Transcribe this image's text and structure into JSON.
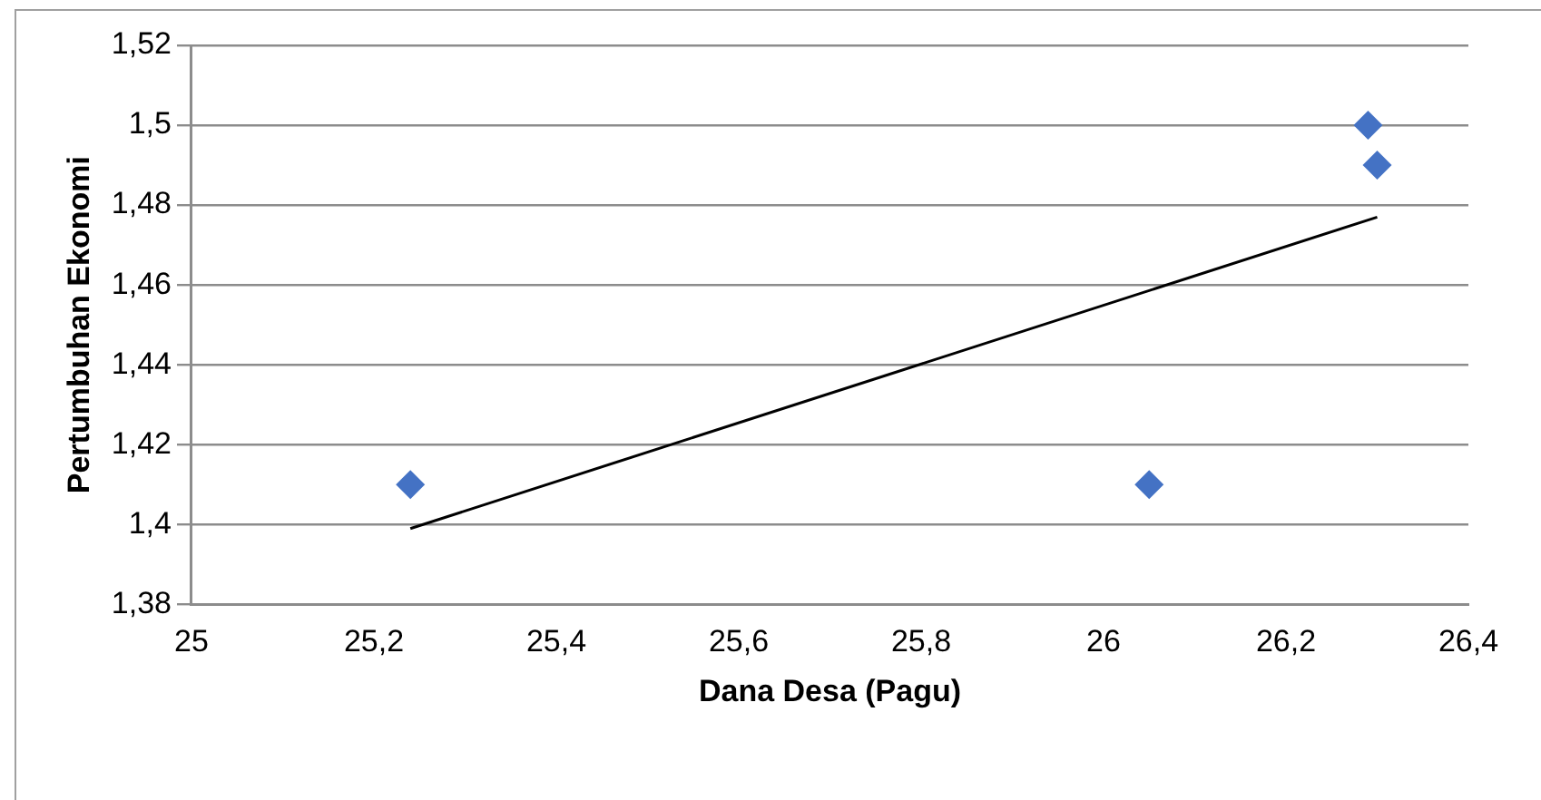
{
  "chart_data": {
    "type": "scatter",
    "xlabel": "Dana Desa (Pagu)",
    "ylabel": "Pertumbuhan Ekonomi",
    "series": [
      {
        "color": "#4472c4",
        "x": [
          25.24,
          26.05,
          26.29,
          26.3
        ],
        "values": [
          1.41,
          1.41,
          1.5,
          1.49
        ],
        "marker": "diamond"
      },
      {
        "type": "line",
        "color": "#000000",
        "x": [
          25.24,
          26.3
        ],
        "values": [
          1.399,
          1.477
        ],
        "marker": "none",
        "line_style": "solid"
      }
    ],
    "xlim": [
      25,
      26.4
    ],
    "xticks": [
      {
        "value": 25,
        "label": "25"
      },
      {
        "value": 25.2,
        "label": "25,2"
      },
      {
        "value": 25.4,
        "label": "25,4"
      },
      {
        "value": 25.6,
        "label": "25,6"
      },
      {
        "value": 25.8,
        "label": "25,8"
      },
      {
        "value": 26,
        "label": "26"
      },
      {
        "value": 26.2,
        "label": "26,2"
      },
      {
        "value": 26.4,
        "label": "26,4"
      }
    ],
    "ylim": [
      1.38,
      1.52
    ],
    "yticks": [
      {
        "value": 1.38,
        "label": "1,38"
      },
      {
        "value": 1.4,
        "label": "1,4"
      },
      {
        "value": 1.42,
        "label": "1,42"
      },
      {
        "value": 1.44,
        "label": "1,44"
      },
      {
        "value": 1.46,
        "label": "1,46"
      },
      {
        "value": 1.48,
        "label": "1,48"
      },
      {
        "value": 1.5,
        "label": "1,5"
      },
      {
        "value": 1.52,
        "label": "1,52"
      }
    ],
    "grid": "y",
    "legend": false
  }
}
